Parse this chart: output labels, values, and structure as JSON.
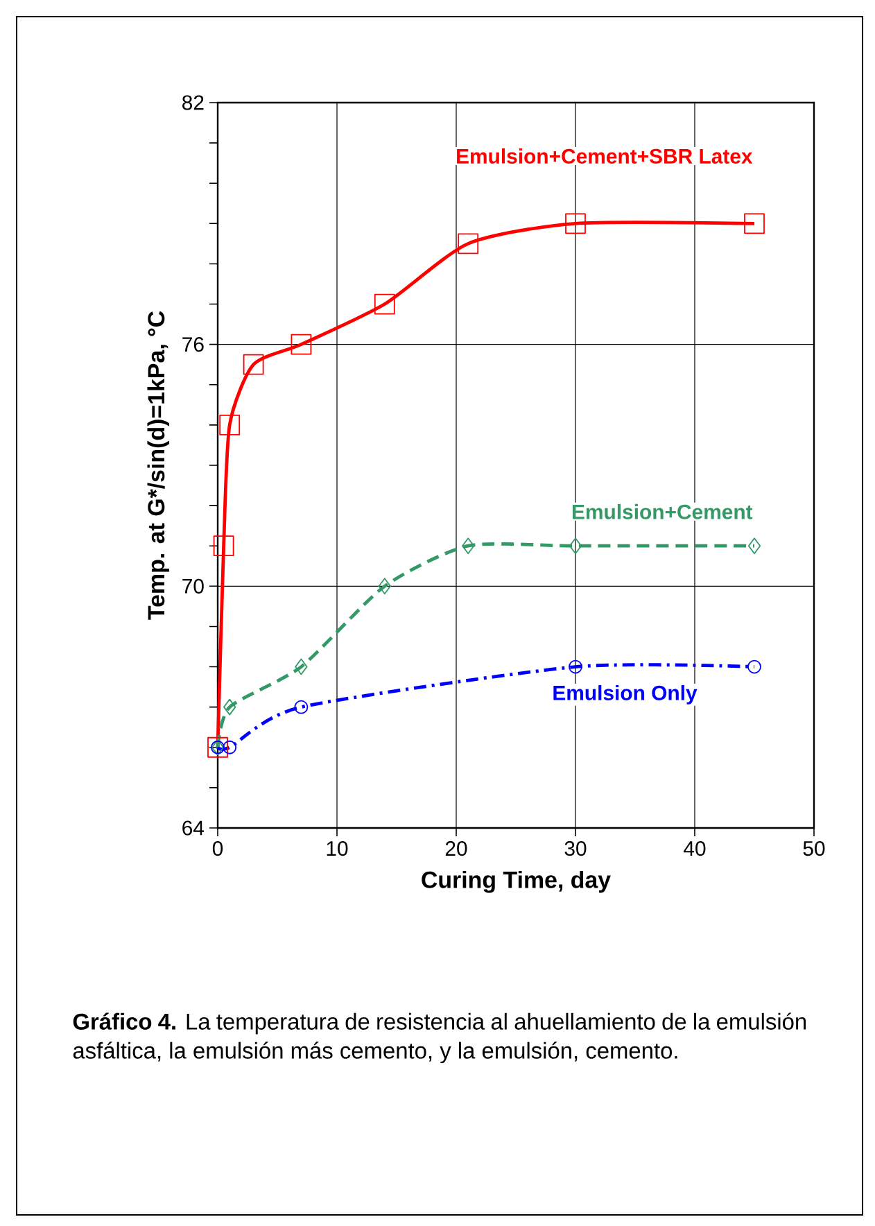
{
  "chart_data": {
    "type": "line",
    "xlabel": "Curing Time, day",
    "ylabel": "Temp. at G*/sin(d)=1kPa, °C",
    "series": [
      {
        "name": "Emulsion+Cement+SBR Latex",
        "color": "#ff0000",
        "marker": "square",
        "line_style": "solid",
        "x": [
          0,
          0.5,
          1,
          3,
          7,
          14,
          21,
          30,
          45
        ],
        "values": [
          66,
          71,
          74,
          75.5,
          76,
          77,
          78.5,
          79,
          79
        ]
      },
      {
        "name": "Emulsion+Cement",
        "color": "#339966",
        "marker": "diamond",
        "line_style": "dashed",
        "x": [
          0,
          1,
          7,
          14,
          21,
          30,
          45
        ],
        "values": [
          66,
          67,
          68,
          70,
          71,
          71,
          71
        ]
      },
      {
        "name": "Emulsion Only",
        "color": "#0000ff",
        "marker": "circle",
        "line_style": "dashdot",
        "x": [
          0,
          1,
          7,
          30,
          45
        ],
        "values": [
          66,
          66,
          67,
          68,
          68
        ]
      }
    ],
    "xlim": [
      0,
      50
    ],
    "xticks": [
      0,
      10,
      20,
      30,
      40,
      50
    ],
    "ylim": [
      64,
      82
    ],
    "yticks": [
      64,
      70,
      76,
      82
    ],
    "grid": true,
    "legend": false,
    "annotations": [
      "**Gráfico 4.** La temperatura de resistencia al ahuellamiento de la emulsión asfáltica, la emulsión más cemento, y la emulsión, cemento."
    ]
  }
}
